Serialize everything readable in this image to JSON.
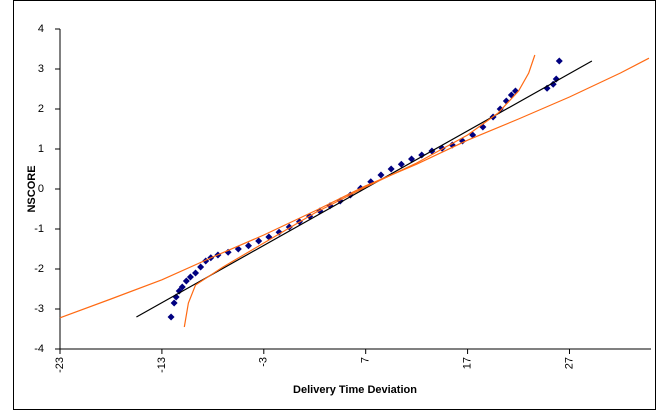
{
  "chart_data": {
    "type": "scatter",
    "x_label": "Delivery Time Deviation",
    "y_label": "NSCORE",
    "xlim": [
      -23,
      35
    ],
    "ylim": [
      -4,
      4
    ],
    "xticks": [
      -23,
      -13,
      -3,
      7,
      17,
      27
    ],
    "yticks": [
      -4,
      -3,
      -2,
      -1,
      0,
      1,
      2,
      3,
      4
    ],
    "grid": false,
    "series": [
      {
        "mode": "markers",
        "color": "#000080",
        "x": [
          -12.1,
          -11.8,
          -11.6,
          -11.3,
          -11.0,
          -10.6,
          -10.2,
          -9.7,
          -9.2,
          -8.7,
          -8.2,
          -7.5,
          -6.5,
          -5.5,
          -4.5,
          -3.5,
          -2.5,
          -1.5,
          -0.5,
          0.5,
          1.5,
          2.5,
          3.5,
          4.5,
          5.5,
          6.5,
          7.5,
          8.5,
          9.5,
          10.5,
          11.5,
          12.5,
          13.5,
          14.5,
          15.5,
          16.5,
          17.5,
          18.5,
          19.5,
          20.2,
          20.8,
          21.3,
          21.7,
          24.8,
          25.4,
          25.7,
          26.0
        ],
        "values": [
          -3.2,
          -2.85,
          -2.7,
          -2.55,
          -2.45,
          -2.3,
          -2.2,
          -2.1,
          -1.95,
          -1.8,
          -1.72,
          -1.65,
          -1.58,
          -1.5,
          -1.42,
          -1.3,
          -1.2,
          -1.08,
          -0.95,
          -0.82,
          -0.68,
          -0.55,
          -0.42,
          -0.3,
          -0.15,
          0.02,
          0.18,
          0.35,
          0.5,
          0.62,
          0.75,
          0.85,
          0.95,
          1.02,
          1.1,
          1.2,
          1.35,
          1.55,
          1.8,
          2.0,
          2.2,
          2.35,
          2.45,
          2.52,
          2.62,
          2.75,
          3.2
        ]
      },
      {
        "mode": "line",
        "color": "#000000",
        "x": [
          -15.5,
          29.2
        ],
        "values": [
          -3.2,
          3.2
        ]
      },
      {
        "mode": "line",
        "color": "#ff6a13",
        "x": [
          -23,
          -18,
          -13,
          -8,
          -3,
          2,
          7,
          12,
          17,
          22,
          27,
          32,
          34.8
        ],
        "values": [
          -3.22,
          -2.75,
          -2.27,
          -1.7,
          -1.15,
          -0.55,
          0.08,
          0.62,
          1.22,
          1.75,
          2.3,
          2.9,
          3.27
        ]
      },
      {
        "mode": "line",
        "color": "#ff6a13",
        "x": [
          -10.8,
          -10.4,
          -9.7,
          -7,
          -3,
          2,
          7,
          12,
          17,
          20,
          22,
          23,
          23.6
        ],
        "values": [
          -3.45,
          -2.85,
          -2.4,
          -1.95,
          -1.35,
          -0.6,
          0.05,
          0.65,
          1.35,
          1.9,
          2.45,
          2.9,
          3.35
        ]
      }
    ]
  }
}
